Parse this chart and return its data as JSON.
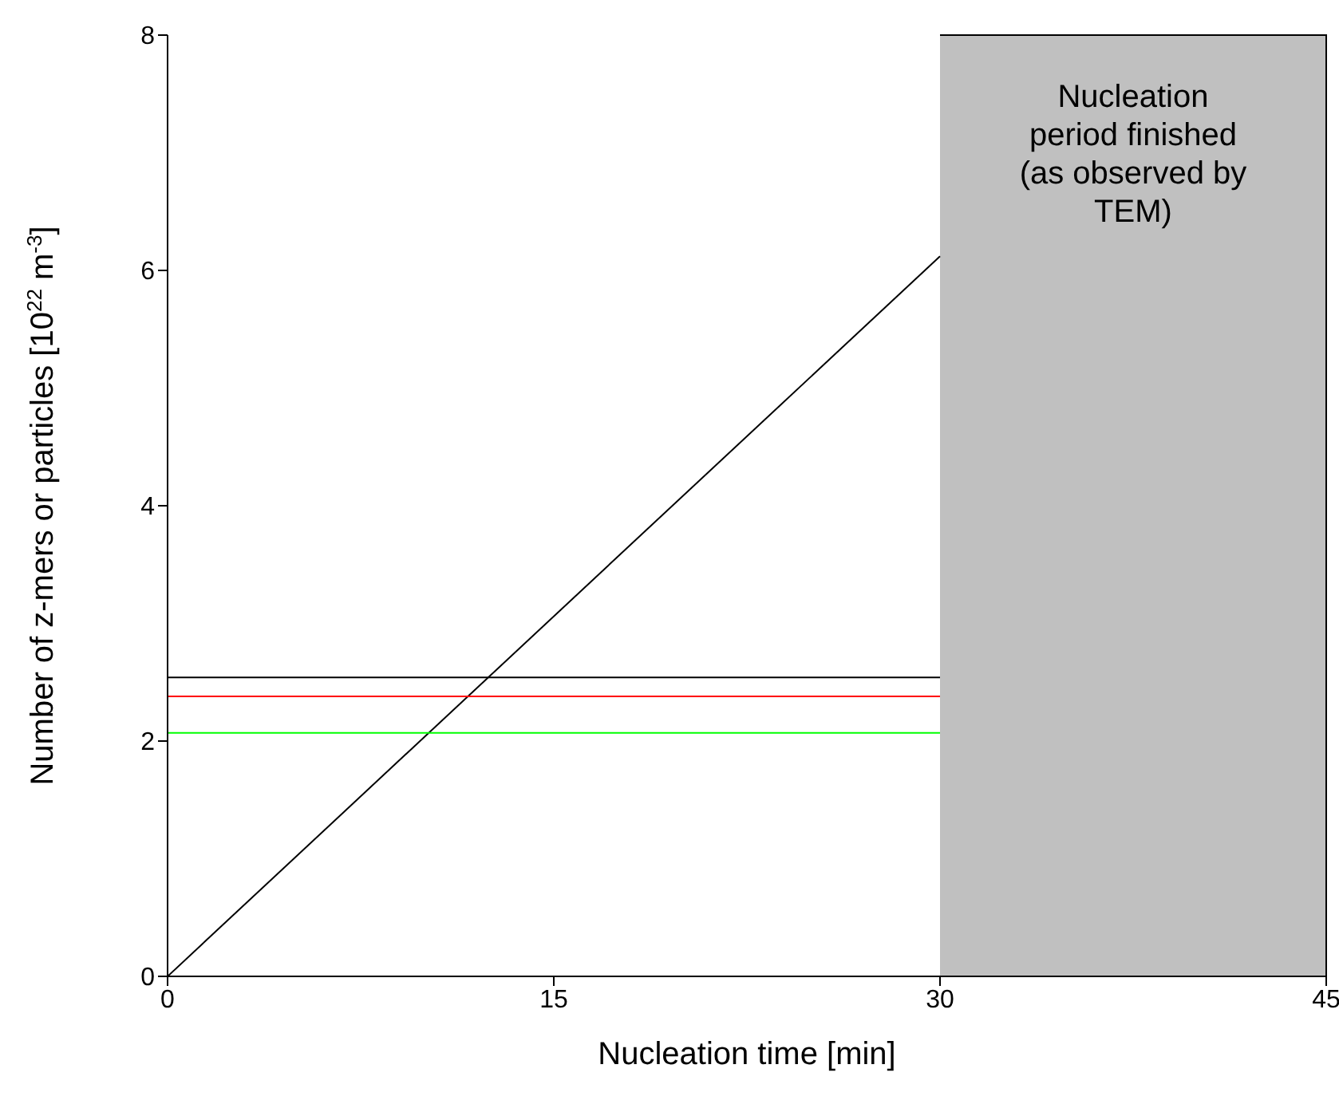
{
  "chart_data": {
    "type": "line",
    "xlabel": "Nucleation time [min]",
    "ylabel": "Number of z-mers or particles [10$^{22}$ m$^{-3}$]",
    "xlim": [
      0,
      45
    ],
    "xticks": [
      0,
      15,
      30,
      45
    ],
    "ylim": [
      0,
      8
    ],
    "yticks": [
      0,
      2,
      4,
      6,
      8
    ],
    "grid": false,
    "marker": "none",
    "line_style": "solid",
    "x": [
      0,
      30
    ],
    "series": [
      {
        "color": "#000000",
        "values": [
          0,
          6.12
        ]
      },
      {
        "color": "#000000",
        "values": [
          2.54,
          2.54
        ]
      },
      {
        "color": "#ff0000",
        "values": [
          2.38,
          2.38
        ]
      },
      {
        "color": "#00ff00",
        "values": [
          2.07,
          2.07
        ]
      }
    ],
    "bands": [
      {
        "axis": "x",
        "from": 30,
        "to": 45,
        "label": "Nucleation period finished (as observed by TEM)",
        "color": "#c0c0c0"
      }
    ]
  }
}
